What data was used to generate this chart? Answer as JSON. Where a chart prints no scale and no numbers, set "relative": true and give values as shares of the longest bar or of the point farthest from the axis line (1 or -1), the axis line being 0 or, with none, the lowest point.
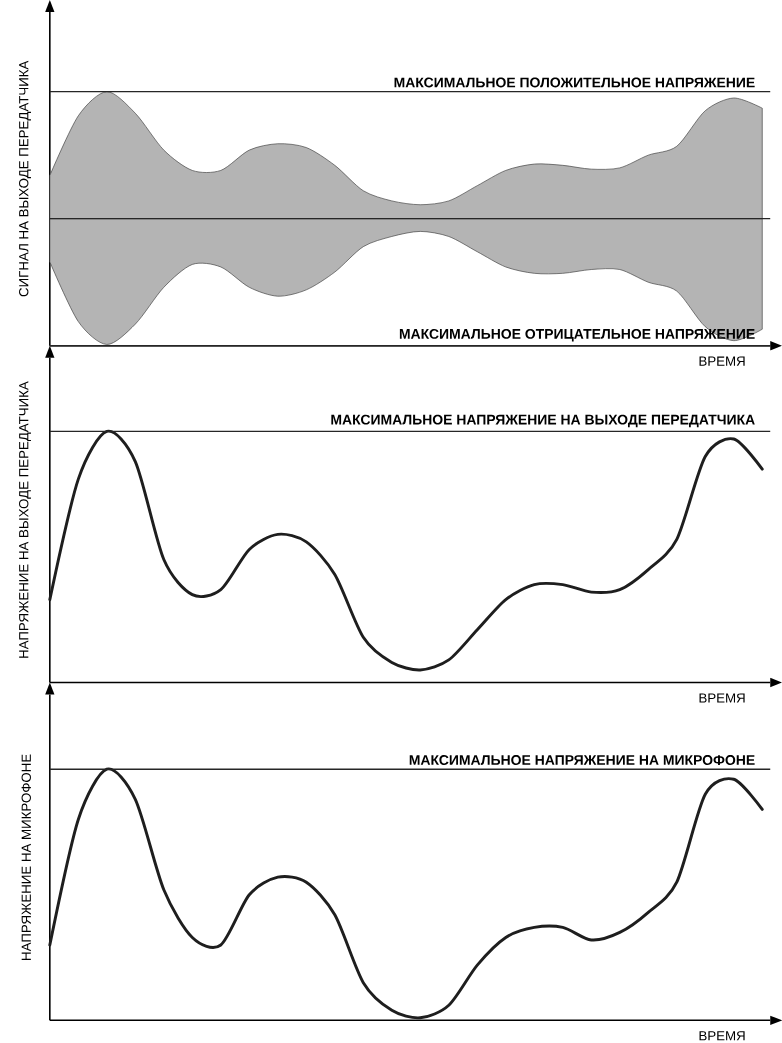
{
  "chart_data": [
    {
      "type": "area",
      "relative": true,
      "ylabel": "СИГНАЛ НА ВЫХОДЕ ПЕРЕДАТЧИКА",
      "xlabel": "ВРЕМЯ",
      "categories": [
        null,
        null,
        null,
        null,
        null,
        null,
        null,
        null,
        null,
        null,
        null,
        null,
        null,
        null,
        null,
        null,
        null,
        null,
        null,
        null,
        null,
        null,
        null,
        null,
        null,
        null
      ],
      "series": [
        {
          "color": "#b4b4b4",
          "values": [
            0.34,
            0.81,
            1,
            0.83,
            0.54,
            0.38,
            0.38,
            0.54,
            0.59,
            0.56,
            0.42,
            0.22,
            0.14,
            0.11,
            0.14,
            0.26,
            0.38,
            0.43,
            0.42,
            0.39,
            0.4,
            0.5,
            0.57,
            0.85,
            0.95,
            0.87
          ]
        },
        {
          "color": "#b4b4b4",
          "values": [
            -0.34,
            -0.81,
            -0.99,
            -0.83,
            -0.54,
            -0.36,
            -0.38,
            -0.54,
            -0.61,
            -0.56,
            -0.42,
            -0.22,
            -0.14,
            -0.1,
            -0.14,
            -0.26,
            -0.38,
            -0.43,
            -0.43,
            -0.4,
            -0.4,
            -0.5,
            -0.57,
            -0.85,
            -0.96,
            -0.87
          ]
        }
      ],
      "ref_lines": [
        {
          "axis": "y",
          "value": 1,
          "label": "МАКСИМАЛЬНОЕ ПОЛОЖИТЕЛЬНОЕ НАПРЯЖЕНИЕ"
        },
        {
          "axis": "y",
          "value": 0
        },
        {
          "axis": "y",
          "value": -1,
          "label": "МАКСИМАЛЬНОЕ ОТРИЦАТЕЛЬНОЕ НАПРЯЖЕНИЕ"
        }
      ]
    },
    {
      "type": "line",
      "relative": true,
      "ylabel": "НАПРЯЖЕНИЕ НА ВЫХОДЕ ПЕРЕДАТЧИКА",
      "xlabel": "ВРЕМЯ",
      "categories": [
        null,
        null,
        null,
        null,
        null,
        null,
        null,
        null,
        null,
        null,
        null,
        null,
        null,
        null,
        null,
        null,
        null,
        null,
        null,
        null,
        null,
        null,
        null,
        null,
        null,
        null
      ],
      "series": [
        {
          "color": "#1e1e1e",
          "values": [
            0.33,
            0.81,
            1,
            0.88,
            0.49,
            0.35,
            0.37,
            0.53,
            0.59,
            0.56,
            0.43,
            0.18,
            0.08,
            0.05,
            0.09,
            0.21,
            0.33,
            0.39,
            0.39,
            0.36,
            0.37,
            0.45,
            0.57,
            0.9,
            0.97,
            0.85
          ]
        }
      ],
      "ref_lines": [
        {
          "axis": "y",
          "value": 1,
          "label": "МАКСИМАЛЬНОЕ НАПРЯЖЕНИЕ НА ВЫХОДЕ ПЕРЕДАТЧИКА"
        }
      ]
    },
    {
      "type": "line",
      "relative": true,
      "ylabel": "НАПРЯЖЕНИЕ НА МИКРОФОНЕ",
      "xlabel": "ВРЕМЯ",
      "categories": [
        null,
        null,
        null,
        null,
        null,
        null,
        null,
        null,
        null,
        null,
        null,
        null,
        null,
        null,
        null,
        null,
        null,
        null,
        null,
        null,
        null,
        null,
        null,
        null,
        null,
        null
      ],
      "series": [
        {
          "color": "#1e1e1e",
          "values": [
            0.3,
            0.8,
            1,
            0.88,
            0.52,
            0.33,
            0.3,
            0.5,
            0.57,
            0.55,
            0.42,
            0.15,
            0.04,
            0.01,
            0.06,
            0.22,
            0.33,
            0.37,
            0.37,
            0.32,
            0.35,
            0.43,
            0.55,
            0.9,
            0.96,
            0.84
          ]
        }
      ],
      "ref_lines": [
        {
          "axis": "y",
          "value": 1,
          "label": "МАКСИМАЛЬНОЕ НАПРЯЖЕНИЕ НА МИКРОФОНЕ"
        }
      ]
    }
  ]
}
